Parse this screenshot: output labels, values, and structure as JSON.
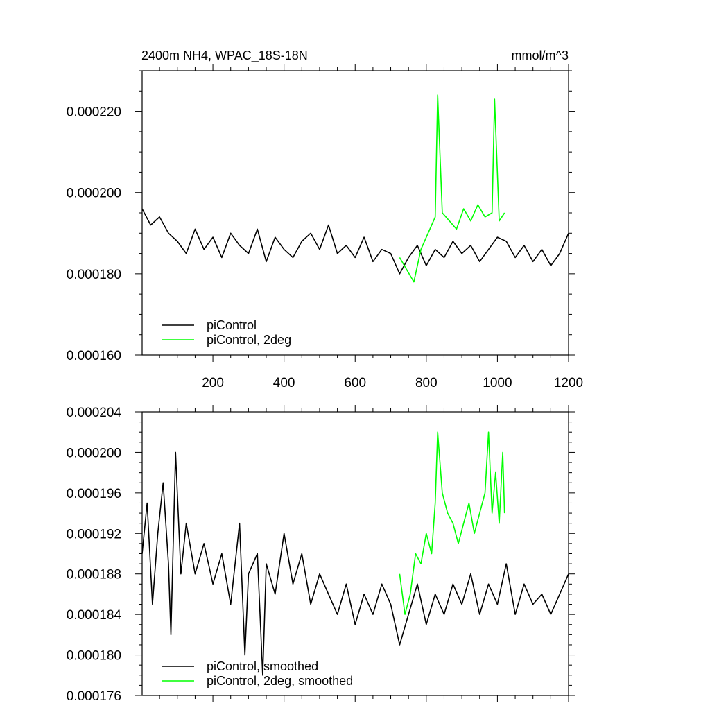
{
  "chart_data": [
    {
      "type": "line",
      "title": "2400m NH4, WPAC_18S-18N",
      "units": "mmol/m^3",
      "xlim": [
        1,
        1200
      ],
      "ylim": [
        0.00016,
        0.00023
      ],
      "xticks": [
        200,
        400,
        600,
        800,
        1000,
        1200
      ],
      "xtick_labels": [
        "200",
        "400",
        "600",
        "800",
        "1000",
        "1200"
      ],
      "yticks": [
        0.00016,
        0.00018,
        0.0002,
        0.00022
      ],
      "ytick_labels": [
        "0.000160",
        "0.000180",
        "0.000200",
        "0.000220"
      ],
      "grid": false,
      "legend_position": "bottom-left",
      "series": [
        {
          "name": "piControl",
          "color": "#000000",
          "x": [
            1,
            25,
            50,
            75,
            100,
            125,
            150,
            175,
            200,
            225,
            250,
            275,
            300,
            325,
            350,
            375,
            400,
            425,
            450,
            475,
            500,
            525,
            550,
            575,
            600,
            625,
            650,
            675,
            700,
            725,
            750,
            775,
            800,
            825,
            850,
            875,
            900,
            925,
            950,
            975,
            1000,
            1025,
            1050,
            1075,
            1100,
            1125,
            1150,
            1175,
            1200
          ],
          "y": [
            0.000196,
            0.000192,
            0.000194,
            0.00019,
            0.000188,
            0.000185,
            0.000191,
            0.000186,
            0.000189,
            0.000184,
            0.00019,
            0.000187,
            0.000185,
            0.000191,
            0.000183,
            0.000189,
            0.000186,
            0.000184,
            0.000188,
            0.00019,
            0.000186,
            0.000192,
            0.000185,
            0.000187,
            0.000184,
            0.000189,
            0.000183,
            0.000186,
            0.000185,
            0.00018,
            0.000184,
            0.000187,
            0.000182,
            0.000186,
            0.000184,
            0.000188,
            0.000185,
            0.000187,
            0.000183,
            0.000186,
            0.000189,
            0.000188,
            0.000184,
            0.000187,
            0.000183,
            0.000186,
            0.000182,
            0.000185,
            0.00019
          ]
        },
        {
          "name": "piControl, 2deg",
          "color": "#00ff00",
          "x": [
            725,
            745,
            765,
            785,
            805,
            825,
            832,
            845,
            865,
            885,
            905,
            925,
            945,
            965,
            985,
            992,
            1005,
            1020
          ],
          "y": [
            0.000184,
            0.000181,
            0.000178,
            0.000186,
            0.00019,
            0.000194,
            0.000224,
            0.000195,
            0.000193,
            0.000191,
            0.000196,
            0.000193,
            0.000197,
            0.000194,
            0.000195,
            0.000223,
            0.000193,
            0.000195
          ]
        }
      ]
    },
    {
      "type": "line",
      "title": "",
      "xlim": [
        1,
        1200
      ],
      "ylim": [
        0.000176,
        0.000204
      ],
      "xticks": [
        200,
        400,
        600,
        800,
        1000,
        1200
      ],
      "yticks": [
        0.000176,
        0.00018,
        0.000184,
        0.000188,
        0.000192,
        0.000196,
        0.0002,
        0.000204
      ],
      "ytick_labels": [
        "0.000176",
        "0.000180",
        "0.000184",
        "0.000188",
        "0.000192",
        "0.000196",
        "0.000200",
        "0.000204"
      ],
      "grid": false,
      "legend_position": "bottom-left",
      "series": [
        {
          "name": "piControl, smoothed",
          "color": "#000000",
          "x": [
            1,
            15,
            30,
            45,
            60,
            75,
            82,
            95,
            110,
            125,
            150,
            175,
            200,
            225,
            250,
            275,
            290,
            300,
            325,
            340,
            350,
            375,
            400,
            425,
            450,
            475,
            500,
            525,
            550,
            575,
            600,
            625,
            650,
            675,
            700,
            725,
            750,
            775,
            800,
            825,
            850,
            875,
            900,
            925,
            950,
            975,
            1000,
            1025,
            1050,
            1075,
            1100,
            1125,
            1150,
            1175,
            1200
          ],
          "y": [
            0.00019,
            0.000195,
            0.000185,
            0.000192,
            0.000197,
            0.000189,
            0.000182,
            0.0002,
            0.000188,
            0.000193,
            0.000188,
            0.000191,
            0.000187,
            0.00019,
            0.000185,
            0.000193,
            0.00018,
            0.000188,
            0.00019,
            0.000178,
            0.000189,
            0.000186,
            0.000192,
            0.000187,
            0.00019,
            0.000185,
            0.000188,
            0.000186,
            0.000184,
            0.000187,
            0.000183,
            0.000186,
            0.000184,
            0.000187,
            0.000185,
            0.000181,
            0.000184,
            0.000187,
            0.000183,
            0.000186,
            0.000184,
            0.000187,
            0.000185,
            0.000188,
            0.000184,
            0.000187,
            0.000185,
            0.000189,
            0.000184,
            0.000187,
            0.000185,
            0.000186,
            0.000184,
            0.000186,
            0.000188
          ]
        },
        {
          "name": "piControl, 2deg, smoothed",
          "color": "#00ff00",
          "x": [
            725,
            740,
            755,
            770,
            785,
            800,
            815,
            825,
            832,
            845,
            860,
            875,
            890,
            905,
            920,
            935,
            950,
            965,
            975,
            985,
            995,
            1005,
            1015,
            1020
          ],
          "y": [
            0.000188,
            0.000184,
            0.000186,
            0.00019,
            0.000189,
            0.000192,
            0.00019,
            0.000195,
            0.000202,
            0.000196,
            0.000194,
            0.000193,
            0.000191,
            0.000193,
            0.000195,
            0.000192,
            0.000194,
            0.000196,
            0.000202,
            0.000194,
            0.000198,
            0.000193,
            0.0002,
            0.000194
          ]
        }
      ]
    }
  ]
}
